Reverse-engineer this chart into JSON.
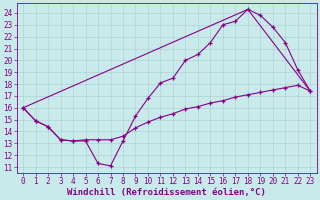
{
  "xlabel": "Windchill (Refroidissement éolien,°C)",
  "background_color": "#c8eaea",
  "grid_color": "#aacccc",
  "line_color": "#880088",
  "xlim": [
    -0.5,
    23.5
  ],
  "ylim": [
    10.5,
    24.8
  ],
  "yticks": [
    11,
    12,
    13,
    14,
    15,
    16,
    17,
    18,
    19,
    20,
    21,
    22,
    23,
    24
  ],
  "xticks": [
    0,
    1,
    2,
    3,
    4,
    5,
    6,
    7,
    8,
    9,
    10,
    11,
    12,
    13,
    14,
    15,
    16,
    17,
    18,
    19,
    20,
    21,
    22,
    23
  ],
  "curve1_x": [
    0,
    1,
    2,
    3,
    4,
    5,
    6,
    7,
    8,
    9,
    10,
    11,
    12,
    13,
    14,
    15,
    16,
    17,
    18,
    19,
    20,
    21,
    22,
    23
  ],
  "curve1_y": [
    16.0,
    14.9,
    14.4,
    13.3,
    13.2,
    13.2,
    11.3,
    11.1,
    13.2,
    15.3,
    16.8,
    18.1,
    18.5,
    20.0,
    20.5,
    21.5,
    23.0,
    23.3,
    24.3,
    23.8,
    22.8,
    21.5,
    19.2,
    17.4
  ],
  "curve2_x": [
    0,
    18,
    23
  ],
  "curve2_y": [
    16.0,
    24.3,
    17.4
  ],
  "curve3_x": [
    0,
    1,
    2,
    3,
    4,
    5,
    6,
    7,
    8,
    9,
    10,
    11,
    12,
    13,
    14,
    15,
    16,
    17,
    18,
    19,
    20,
    21,
    22,
    23
  ],
  "curve3_y": [
    16.0,
    14.9,
    14.4,
    13.3,
    13.2,
    13.3,
    13.3,
    13.3,
    13.6,
    14.3,
    14.8,
    15.2,
    15.5,
    15.9,
    16.1,
    16.4,
    16.6,
    16.9,
    17.1,
    17.3,
    17.5,
    17.7,
    17.9,
    17.4
  ],
  "xlabel_fontsize": 6.5,
  "tick_fontsize": 5.5
}
